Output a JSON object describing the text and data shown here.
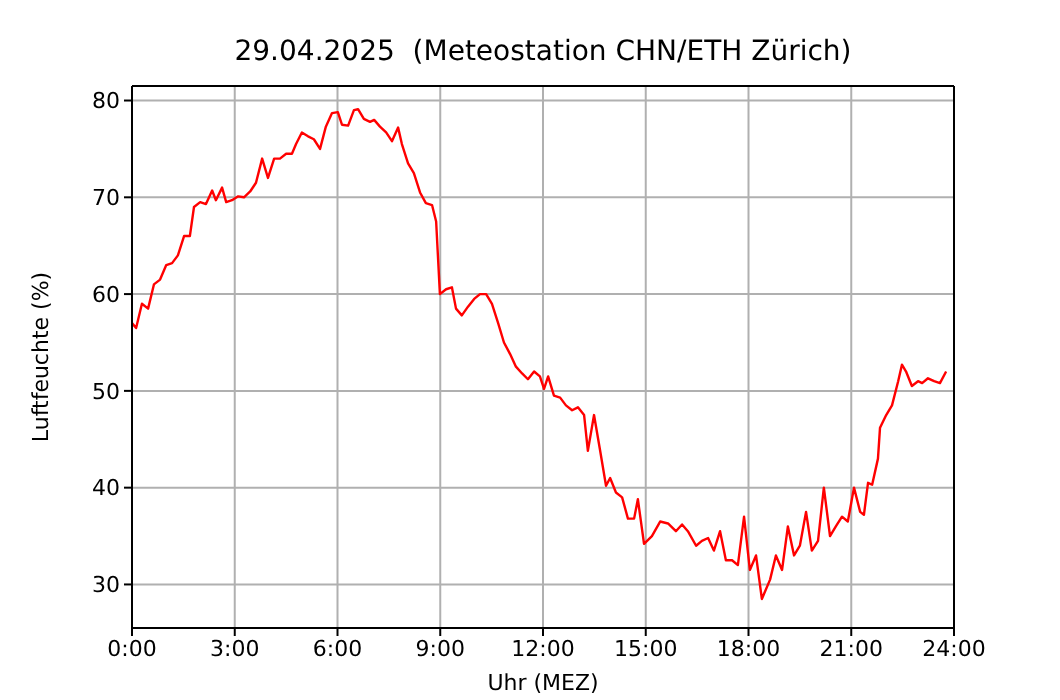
{
  "chart_data": {
    "type": "line",
    "title": "29.04.2025  (Meteostation CHN/ETH Zürich)",
    "xlabel": "Uhr (MEZ)",
    "ylabel": "Luftfeuchte (%)",
    "x": [
      0,
      0.12,
      0.29,
      0.47,
      0.64,
      0.82,
      1.0,
      1.17,
      1.34,
      1.52,
      1.69,
      1.81,
      1.99,
      2.16,
      2.34,
      2.45,
      2.63,
      2.75,
      2.92,
      3.1,
      3.27,
      3.45,
      3.62,
      3.8,
      3.97,
      4.15,
      4.32,
      4.5,
      4.67,
      4.79,
      4.96,
      5.14,
      5.31,
      5.49,
      5.66,
      5.84,
      6.01,
      6.13,
      6.31,
      6.48,
      6.6,
      6.77,
      6.95,
      7.07,
      7.24,
      7.42,
      7.59,
      7.77,
      7.88,
      8.06,
      8.23,
      8.41,
      8.58,
      8.76,
      8.88,
      8.99,
      9.17,
      9.34,
      9.46,
      9.63,
      9.81,
      9.99,
      10.16,
      10.34,
      10.51,
      10.69,
      10.86,
      11.04,
      11.21,
      11.39,
      11.56,
      11.74,
      11.91,
      12.03,
      12.15,
      12.32,
      12.5,
      12.67,
      12.85,
      13.02,
      13.2,
      13.31,
      13.49,
      13.66,
      13.84,
      13.96,
      14.13,
      14.31,
      14.48,
      14.66,
      14.77,
      14.95,
      15.18,
      15.42,
      15.65,
      15.88,
      16.06,
      16.23,
      16.47,
      16.64,
      16.82,
      16.99,
      17.17,
      17.34,
      17.52,
      17.69,
      17.87,
      18.04,
      18.22,
      18.39,
      18.63,
      18.8,
      18.98,
      19.15,
      19.33,
      19.5,
      19.68,
      19.85,
      20.03,
      20.2,
      20.38,
      20.55,
      20.73,
      20.9,
      21.08,
      21.26,
      21.37,
      21.49,
      21.61,
      21.78,
      21.84,
      22.02,
      22.19,
      22.37,
      22.48,
      22.6,
      22.77,
      22.95,
      23.07,
      23.24,
      23.42,
      23.59,
      23.77
    ],
    "series": [
      {
        "color": "#ff0000",
        "values": [
          57,
          56.5,
          59,
          58.5,
          61,
          61.5,
          63,
          63.2,
          64,
          66,
          66,
          69,
          69.5,
          69.3,
          70.7,
          69.7,
          71,
          69.5,
          69.7,
          70.1,
          70,
          70.6,
          71.5,
          74,
          72,
          74,
          74,
          74.5,
          74.5,
          75.5,
          76.7,
          76.3,
          76,
          75,
          77.3,
          78.7,
          78.8,
          77.5,
          77.4,
          79,
          79.1,
          78.1,
          77.8,
          78,
          77.3,
          76.7,
          75.8,
          77.2,
          75.5,
          73.5,
          72.5,
          70.5,
          69.4,
          69.2,
          67.5,
          60,
          60.5,
          60.7,
          58.5,
          57.8,
          58.7,
          59.5,
          60,
          60,
          59,
          57,
          55,
          53.8,
          52.5,
          51.8,
          51.2,
          52,
          51.5,
          50.2,
          51.5,
          49.5,
          49.3,
          48.5,
          48,
          48.3,
          47.5,
          43.8,
          47.5,
          44,
          40.2,
          41,
          39.5,
          39,
          36.8,
          36.8,
          38.8,
          34.2,
          35,
          36.5,
          36.3,
          35.5,
          36.2,
          35.5,
          34,
          34.5,
          34.8,
          33.5,
          35.5,
          32.5,
          32.5,
          32,
          37,
          31.5,
          33,
          28.5,
          30.5,
          33,
          31.5,
          36,
          33,
          34,
          37.5,
          33.5,
          34.5,
          40,
          35,
          36,
          37,
          36.5,
          40,
          37.5,
          37.2,
          40.5,
          40.3,
          43,
          46.2,
          47.5,
          48.5,
          51,
          52.7,
          52,
          50.5,
          51,
          50.8,
          51.3,
          51,
          50.8,
          52
        ]
      }
    ],
    "xlim": [
      0,
      24
    ],
    "xticks": [
      {
        "value": 0,
        "label": "0:00"
      },
      {
        "value": 3,
        "label": "3:00"
      },
      {
        "value": 6,
        "label": "6:00"
      },
      {
        "value": 9,
        "label": "9:00"
      },
      {
        "value": 12,
        "label": "12:00"
      },
      {
        "value": 15,
        "label": "15:00"
      },
      {
        "value": 18,
        "label": "18:00"
      },
      {
        "value": 21,
        "label": "21:00"
      },
      {
        "value": 24,
        "label": "24:00"
      }
    ],
    "ylim": [
      25.5,
      81.5
    ],
    "yticks": [
      30,
      40,
      50,
      60,
      70,
      80
    ],
    "grid": true,
    "marker": "none",
    "line_style": "solid"
  }
}
